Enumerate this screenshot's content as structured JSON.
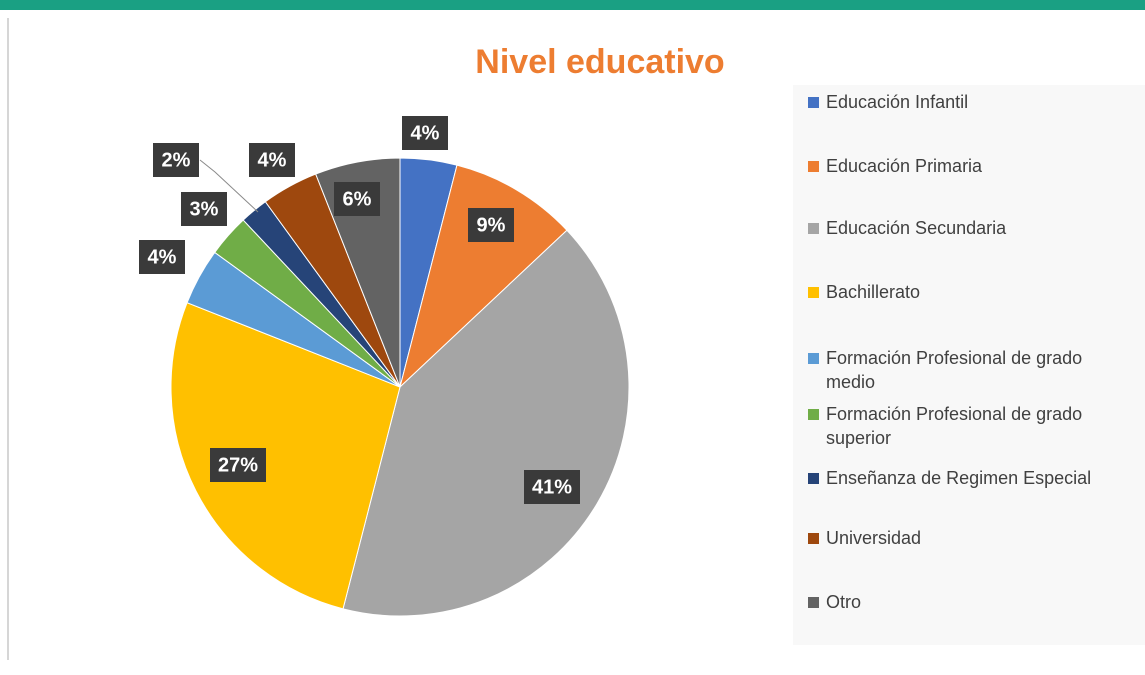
{
  "chart_data": {
    "type": "pie",
    "title": "Nivel educativo",
    "categories": [
      "Educación Infantil",
      "Educación Primaria",
      "Educación Secundaria",
      "Bachillerato",
      "Formación Profesional de grado medio",
      "Formación Profesional de grado superior",
      "Enseñanza de Regimen Especial",
      "Universidad",
      "Otro"
    ],
    "values": [
      4,
      9,
      41,
      27,
      4,
      3,
      2,
      4,
      6
    ],
    "value_labels": [
      "4%",
      "9%",
      "41%",
      "27%",
      "4%",
      "3%",
      "2%",
      "4%",
      "6%"
    ],
    "colors": [
      "#4472c4",
      "#ed7d31",
      "#a5a5a5",
      "#ffc000",
      "#5b9bd5",
      "#70ad47",
      "#264478",
      "#9e480e",
      "#636363"
    ],
    "legend": "right"
  }
}
